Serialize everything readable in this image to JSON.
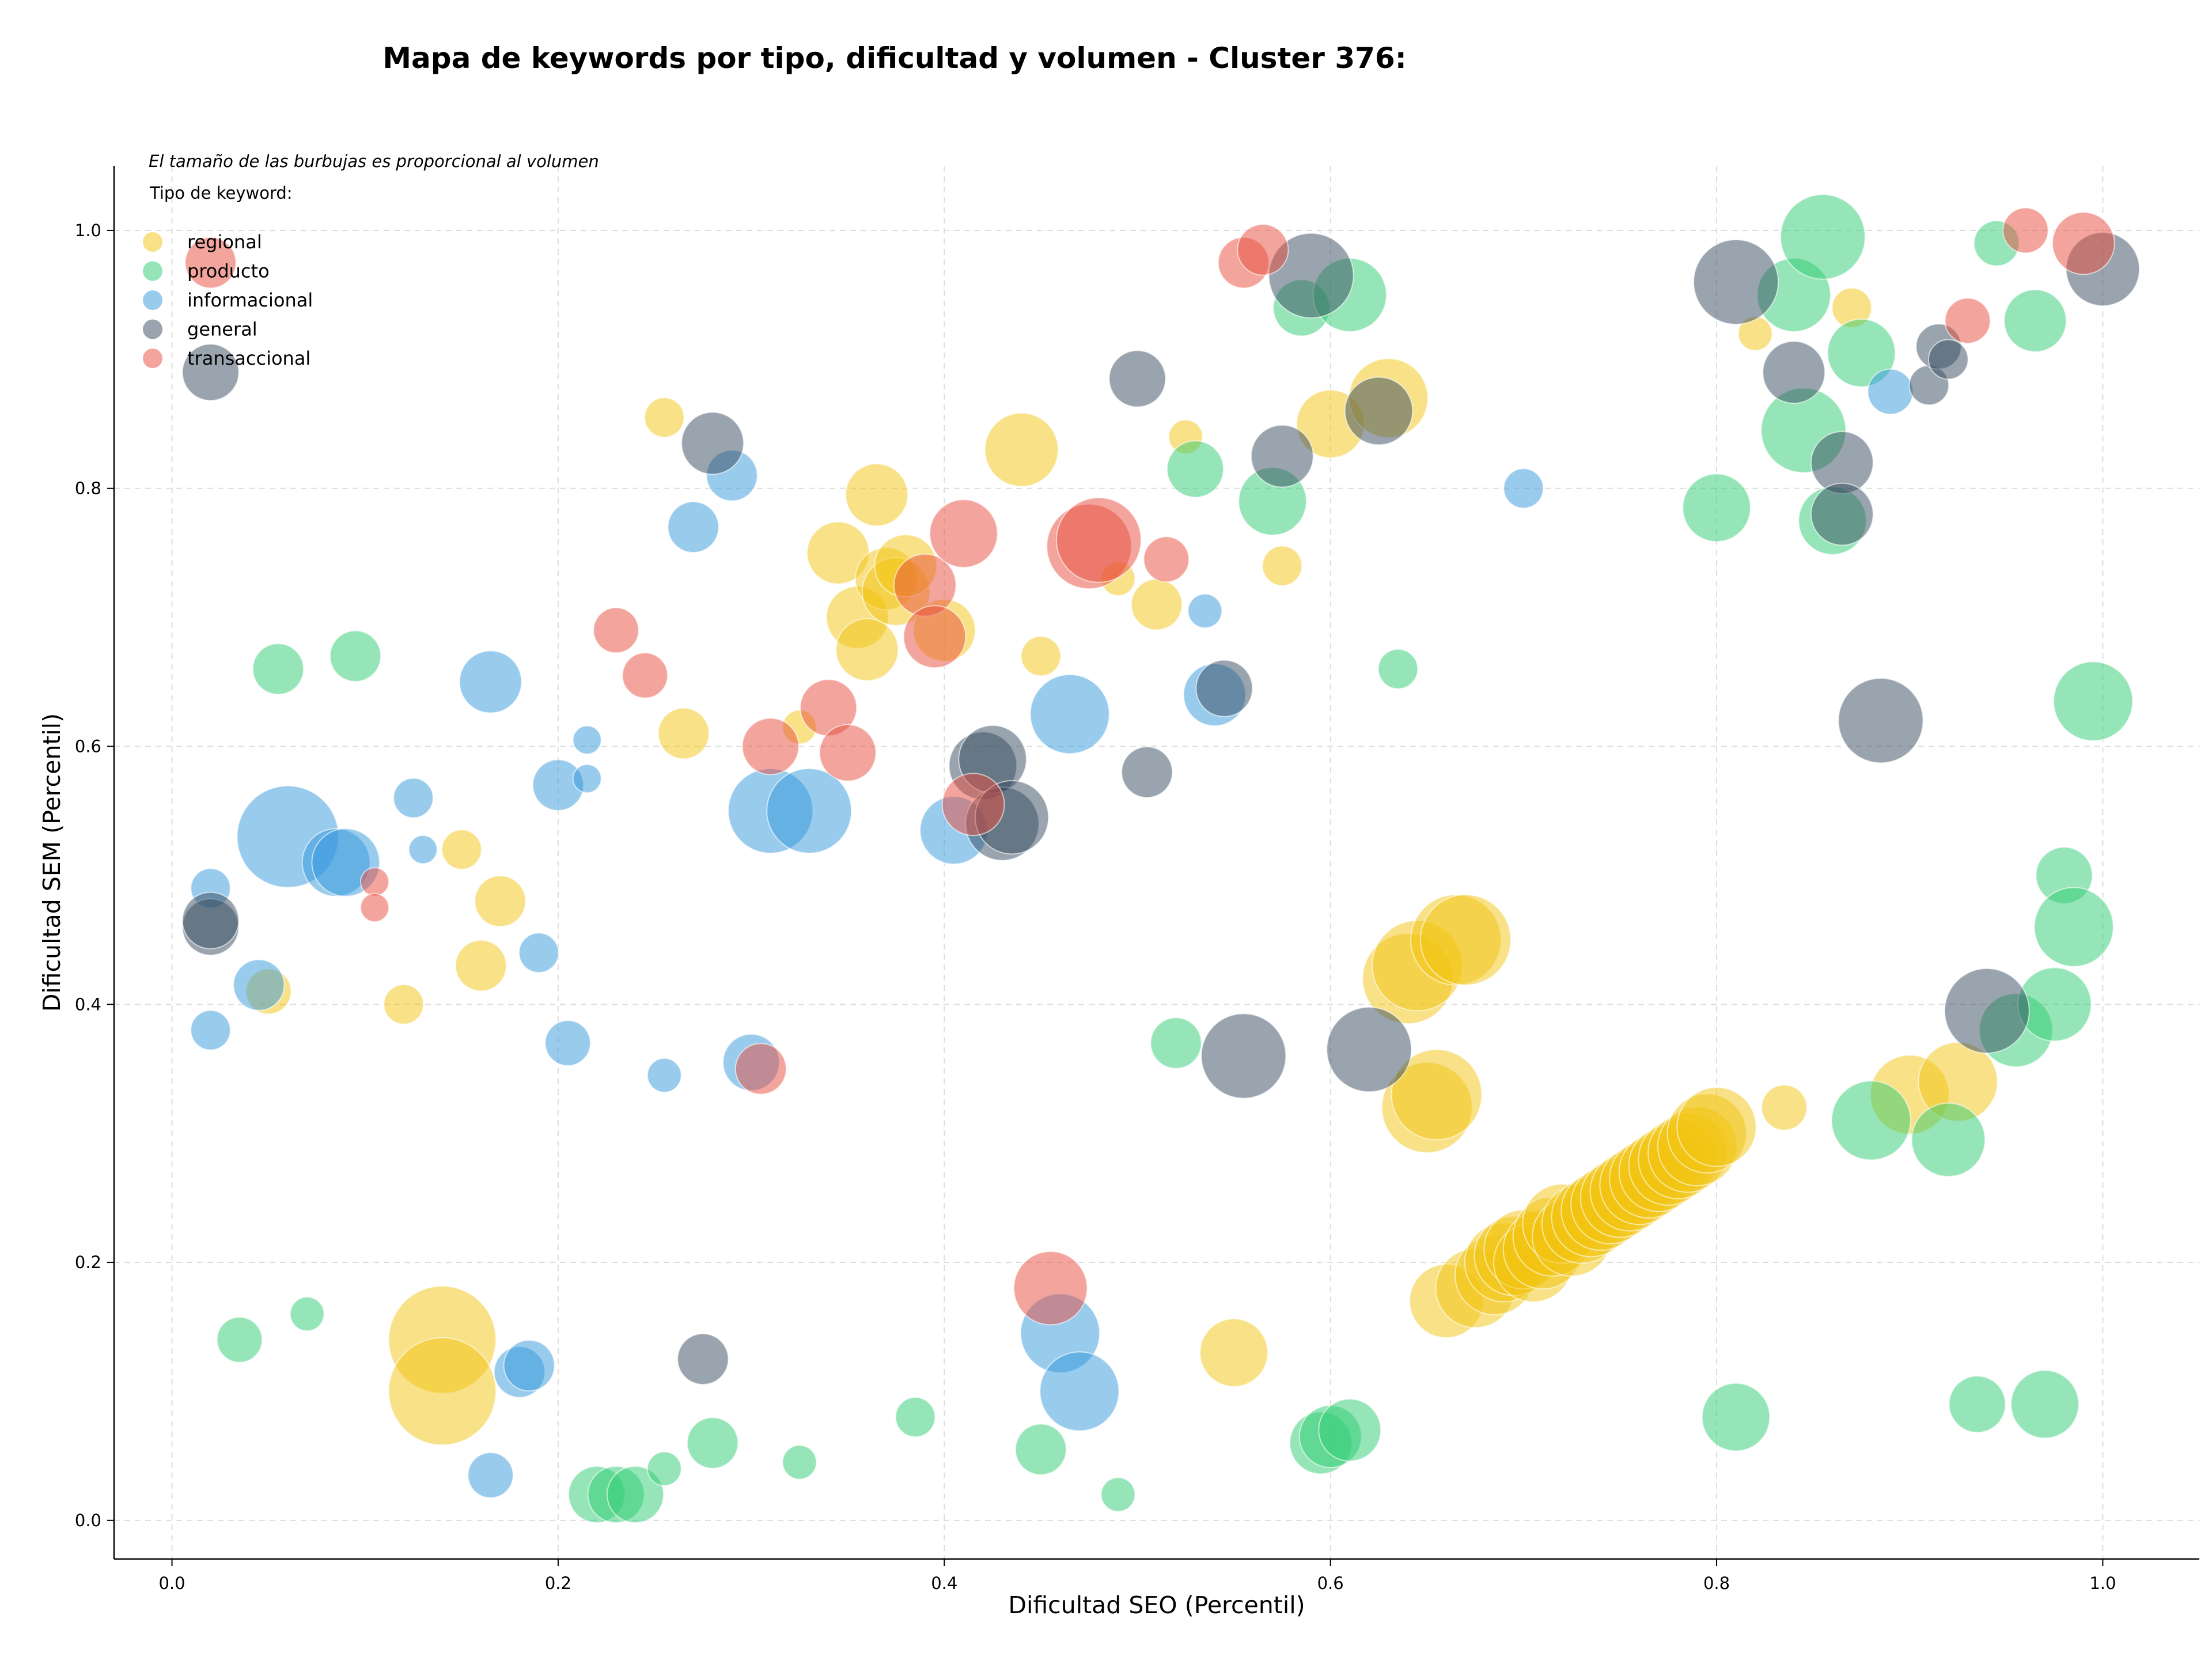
{
  "chart_data": {
    "type": "scatter",
    "title": "Mapa de keywords por tipo, dificultad y volumen - Cluster 376:",
    "xlabel": "Dificultad SEO (Percentil)",
    "ylabel": "Dificultad SEM (Percentil)",
    "xlim": [
      -0.03,
      1.05
    ],
    "ylim": [
      -0.03,
      1.05
    ],
    "xticks": [
      0.0,
      0.2,
      0.4,
      0.6,
      0.8,
      1.0
    ],
    "yticks": [
      0.0,
      0.2,
      0.4,
      0.6,
      0.8,
      1.0
    ],
    "xtick_labels": [
      "0.0",
      "0.2",
      "0.4",
      "0.6",
      "0.8",
      "1.0"
    ],
    "ytick_labels": [
      "0.0",
      "0.2",
      "0.4",
      "0.6",
      "0.8",
      "1.0"
    ],
    "grid": true,
    "annotation": "El tamaño de las burbujas es proporcional al volumen",
    "legend_title": "Tipo de keyword:",
    "legend_position": "top-left",
    "series": [
      {
        "name": "regional",
        "color": "#F1C40F",
        "points": [
          [
            0.05,
            0.41,
            16
          ],
          [
            0.12,
            0.4,
            14
          ],
          [
            0.15,
            0.52,
            14
          ],
          [
            0.16,
            0.43,
            18
          ],
          [
            0.17,
            0.48,
            18
          ],
          [
            0.14,
            0.14,
            38
          ],
          [
            0.14,
            0.1,
            38
          ],
          [
            0.255,
            0.855,
            14
          ],
          [
            0.265,
            0.61,
            18
          ],
          [
            0.325,
            0.615,
            12
          ],
          [
            0.345,
            0.75,
            22
          ],
          [
            0.355,
            0.7,
            22
          ],
          [
            0.36,
            0.675,
            22
          ],
          [
            0.365,
            0.795,
            22
          ],
          [
            0.37,
            0.73,
            22
          ],
          [
            0.375,
            0.72,
            24
          ],
          [
            0.38,
            0.74,
            22
          ],
          [
            0.4,
            0.69,
            22
          ],
          [
            0.44,
            0.83,
            26
          ],
          [
            0.45,
            0.67,
            14
          ],
          [
            0.49,
            0.73,
            12
          ],
          [
            0.51,
            0.71,
            18
          ],
          [
            0.525,
            0.84,
            12
          ],
          [
            0.55,
            0.13,
            24
          ],
          [
            0.575,
            0.74,
            14
          ],
          [
            0.6,
            0.85,
            24
          ],
          [
            0.63,
            0.87,
            28
          ],
          [
            0.64,
            0.42,
            32
          ],
          [
            0.645,
            0.43,
            32
          ],
          [
            0.65,
            0.32,
            32
          ],
          [
            0.655,
            0.33,
            32
          ],
          [
            0.665,
            0.45,
            32
          ],
          [
            0.67,
            0.45,
            32
          ],
          [
            0.66,
            0.17,
            26
          ],
          [
            0.675,
            0.18,
            28
          ],
          [
            0.685,
            0.19,
            28
          ],
          [
            0.69,
            0.2,
            28
          ],
          [
            0.695,
            0.205,
            28
          ],
          [
            0.7,
            0.21,
            28
          ],
          [
            0.705,
            0.2,
            28
          ],
          [
            0.71,
            0.21,
            28
          ],
          [
            0.715,
            0.22,
            28
          ],
          [
            0.72,
            0.23,
            28
          ],
          [
            0.725,
            0.22,
            28
          ],
          [
            0.73,
            0.23,
            28
          ],
          [
            0.735,
            0.235,
            28
          ],
          [
            0.74,
            0.24,
            28
          ],
          [
            0.745,
            0.245,
            28
          ],
          [
            0.75,
            0.25,
            28
          ],
          [
            0.755,
            0.255,
            28
          ],
          [
            0.76,
            0.26,
            28
          ],
          [
            0.765,
            0.265,
            28
          ],
          [
            0.77,
            0.27,
            28
          ],
          [
            0.775,
            0.275,
            28
          ],
          [
            0.78,
            0.28,
            28
          ],
          [
            0.785,
            0.285,
            28
          ],
          [
            0.79,
            0.29,
            28
          ],
          [
            0.795,
            0.3,
            28
          ],
          [
            0.8,
            0.305,
            28
          ],
          [
            0.835,
            0.32,
            16
          ],
          [
            0.87,
            0.94,
            14
          ],
          [
            0.82,
            0.92,
            12
          ],
          [
            0.9,
            0.33,
            28
          ],
          [
            0.925,
            0.34,
            28
          ]
        ]
      },
      {
        "name": "producto",
        "color": "#2ECC71",
        "points": [
          [
            0.035,
            0.14,
            16
          ],
          [
            0.055,
            0.66,
            18
          ],
          [
            0.07,
            0.16,
            12
          ],
          [
            0.095,
            0.67,
            18
          ],
          [
            0.22,
            0.02,
            20
          ],
          [
            0.23,
            0.02,
            20
          ],
          [
            0.24,
            0.02,
            20
          ],
          [
            0.255,
            0.04,
            12
          ],
          [
            0.28,
            0.06,
            18
          ],
          [
            0.325,
            0.045,
            12
          ],
          [
            0.385,
            0.08,
            14
          ],
          [
            0.45,
            0.055,
            18
          ],
          [
            0.49,
            0.02,
            12
          ],
          [
            0.52,
            0.37,
            18
          ],
          [
            0.53,
            0.815,
            20
          ],
          [
            0.57,
            0.79,
            24
          ],
          [
            0.585,
            0.94,
            20
          ],
          [
            0.595,
            0.06,
            22
          ],
          [
            0.6,
            0.065,
            22
          ],
          [
            0.61,
            0.07,
            22
          ],
          [
            0.61,
            0.95,
            26
          ],
          [
            0.635,
            0.66,
            14
          ],
          [
            0.8,
            0.785,
            24
          ],
          [
            0.81,
            0.08,
            24
          ],
          [
            0.84,
            0.95,
            26
          ],
          [
            0.845,
            0.845,
            30
          ],
          [
            0.855,
            0.995,
            30
          ],
          [
            0.86,
            0.775,
            24
          ],
          [
            0.875,
            0.905,
            24
          ],
          [
            0.88,
            0.31,
            28
          ],
          [
            0.92,
            0.295,
            26
          ],
          [
            0.935,
            0.09,
            20
          ],
          [
            0.945,
            0.99,
            16
          ],
          [
            0.965,
            0.93,
            22
          ],
          [
            0.955,
            0.38,
            26
          ],
          [
            0.975,
            0.4,
            26
          ],
          [
            0.97,
            0.09,
            24
          ],
          [
            0.98,
            0.5,
            20
          ],
          [
            0.985,
            0.46,
            28
          ],
          [
            0.995,
            0.635,
            28
          ]
        ]
      },
      {
        "name": "informacional",
        "color": "#3498DB",
        "points": [
          [
            0.02,
            0.49,
            14
          ],
          [
            0.02,
            0.38,
            14
          ],
          [
            0.045,
            0.415,
            18
          ],
          [
            0.06,
            0.53,
            36
          ],
          [
            0.085,
            0.51,
            24
          ],
          [
            0.09,
            0.51,
            24
          ],
          [
            0.125,
            0.56,
            14
          ],
          [
            0.13,
            0.52,
            10
          ],
          [
            0.165,
            0.035,
            16
          ],
          [
            0.165,
            0.65,
            22
          ],
          [
            0.18,
            0.115,
            18
          ],
          [
            0.185,
            0.12,
            18
          ],
          [
            0.19,
            0.44,
            14
          ],
          [
            0.2,
            0.57,
            18
          ],
          [
            0.205,
            0.37,
            16
          ],
          [
            0.215,
            0.605,
            10
          ],
          [
            0.215,
            0.575,
            10
          ],
          [
            0.255,
            0.345,
            12
          ],
          [
            0.27,
            0.77,
            18
          ],
          [
            0.29,
            0.81,
            18
          ],
          [
            0.3,
            0.355,
            20
          ],
          [
            0.31,
            0.55,
            30
          ],
          [
            0.33,
            0.55,
            30
          ],
          [
            0.405,
            0.535,
            24
          ],
          [
            0.46,
            0.145,
            28
          ],
          [
            0.47,
            0.1,
            28
          ],
          [
            0.465,
            0.625,
            28
          ],
          [
            0.535,
            0.705,
            12
          ],
          [
            0.54,
            0.64,
            22
          ],
          [
            0.7,
            0.8,
            14
          ],
          [
            0.89,
            0.875,
            16
          ]
        ]
      },
      {
        "name": "general",
        "color": "#34495E",
        "points": [
          [
            0.02,
            0.89,
            20
          ],
          [
            0.02,
            0.46,
            20
          ],
          [
            0.02,
            0.465,
            20
          ],
          [
            0.28,
            0.835,
            22
          ],
          [
            0.275,
            0.125,
            18
          ],
          [
            0.42,
            0.585,
            24
          ],
          [
            0.425,
            0.59,
            24
          ],
          [
            0.43,
            0.54,
            26
          ],
          [
            0.435,
            0.545,
            26
          ],
          [
            0.5,
            0.885,
            20
          ],
          [
            0.505,
            0.58,
            18
          ],
          [
            0.545,
            0.645,
            20
          ],
          [
            0.555,
            0.36,
            30
          ],
          [
            0.575,
            0.825,
            22
          ],
          [
            0.59,
            0.965,
            30
          ],
          [
            0.62,
            0.365,
            30
          ],
          [
            0.625,
            0.86,
            24
          ],
          [
            0.81,
            0.96,
            30
          ],
          [
            0.84,
            0.89,
            22
          ],
          [
            0.865,
            0.82,
            22
          ],
          [
            0.865,
            0.78,
            22
          ],
          [
            0.885,
            0.62,
            30
          ],
          [
            0.91,
            0.88,
            14
          ],
          [
            0.915,
            0.91,
            16
          ],
          [
            0.92,
            0.9,
            14
          ],
          [
            0.94,
            0.395,
            30
          ],
          [
            1.0,
            0.97,
            26
          ]
        ]
      },
      {
        "name": "transaccional",
        "color": "#E74C3C",
        "points": [
          [
            0.02,
            0.975,
            18
          ],
          [
            0.105,
            0.495,
            10
          ],
          [
            0.105,
            0.475,
            10
          ],
          [
            0.23,
            0.69,
            16
          ],
          [
            0.245,
            0.655,
            16
          ],
          [
            0.305,
            0.35,
            18
          ],
          [
            0.31,
            0.6,
            20
          ],
          [
            0.34,
            0.63,
            20
          ],
          [
            0.35,
            0.595,
            20
          ],
          [
            0.39,
            0.725,
            22
          ],
          [
            0.395,
            0.685,
            22
          ],
          [
            0.41,
            0.765,
            24
          ],
          [
            0.415,
            0.555,
            22
          ],
          [
            0.455,
            0.18,
            26
          ],
          [
            0.475,
            0.755,
            30
          ],
          [
            0.48,
            0.76,
            30
          ],
          [
            0.515,
            0.745,
            16
          ],
          [
            0.555,
            0.975,
            18
          ],
          [
            0.565,
            0.985,
            18
          ],
          [
            0.93,
            0.93,
            16
          ],
          [
            0.96,
            1.0,
            16
          ],
          [
            0.99,
            0.99,
            22
          ]
        ]
      }
    ]
  }
}
